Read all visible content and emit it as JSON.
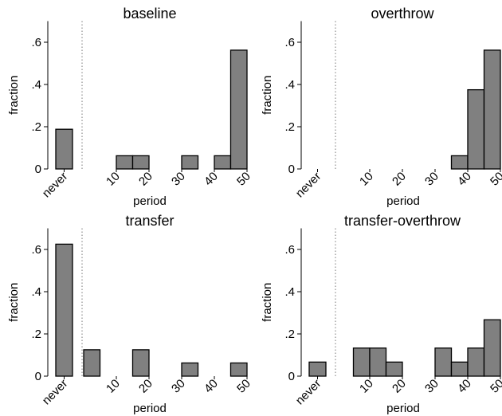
{
  "chart_data": [
    {
      "type": "bar",
      "title": "baseline",
      "xlabel": "period",
      "ylabel": "fraction",
      "ylim": [
        0,
        0.7
      ],
      "yticks": [
        0,
        0.2,
        0.4,
        0.6
      ],
      "ytick_labels": [
        "0",
        ".2",
        ".4",
        ".6"
      ],
      "xticks": [
        "never",
        "10",
        "20",
        "30",
        "40",
        "50"
      ],
      "bars": [
        {
          "x": "never",
          "value": 0.188
        },
        {
          "x": 12.5,
          "value": 0.0625
        },
        {
          "x": 17.5,
          "value": 0.0625
        },
        {
          "x": 32.5,
          "value": 0.0625
        },
        {
          "x": 42.5,
          "value": 0.0625
        },
        {
          "x": 47.5,
          "value": 0.5625
        }
      ]
    },
    {
      "type": "bar",
      "title": "overthrow",
      "xlabel": "period",
      "ylabel": "fraction",
      "ylim": [
        0,
        0.7
      ],
      "yticks": [
        0,
        0.2,
        0.4,
        0.6
      ],
      "ytick_labels": [
        "0",
        ".2",
        ".4",
        ".6"
      ],
      "xticks": [
        "never",
        "10",
        "20",
        "30",
        "40",
        "50"
      ],
      "bars": [
        {
          "x": 37.5,
          "value": 0.0625
        },
        {
          "x": 42.5,
          "value": 0.375
        },
        {
          "x": 47.5,
          "value": 0.5625
        }
      ]
    },
    {
      "type": "bar",
      "title": "transfer",
      "xlabel": "period",
      "ylabel": "fraction",
      "ylim": [
        0,
        0.7
      ],
      "yticks": [
        0,
        0.2,
        0.4,
        0.6
      ],
      "ytick_labels": [
        "0",
        ".2",
        ".4",
        ".6"
      ],
      "xticks": [
        "never",
        "10",
        "20",
        "30",
        "40",
        "50"
      ],
      "bars": [
        {
          "x": "never",
          "value": 0.625
        },
        {
          "x": 2.5,
          "value": 0.125
        },
        {
          "x": 17.5,
          "value": 0.125
        },
        {
          "x": 32.5,
          "value": 0.0625
        },
        {
          "x": 47.5,
          "value": 0.0625
        }
      ]
    },
    {
      "type": "bar",
      "title": "transfer-overthrow",
      "xlabel": "period",
      "ylabel": "fraction",
      "ylim": [
        0,
        0.7
      ],
      "yticks": [
        0,
        0.2,
        0.4,
        0.6
      ],
      "ytick_labels": [
        "0",
        ".2",
        ".4",
        ".6"
      ],
      "xticks": [
        "never",
        "10",
        "20",
        "30",
        "40",
        "50"
      ],
      "bars": [
        {
          "x": "never",
          "value": 0.0667
        },
        {
          "x": 7.5,
          "value": 0.133
        },
        {
          "x": 12.5,
          "value": 0.133
        },
        {
          "x": 17.5,
          "value": 0.0667
        },
        {
          "x": 32.5,
          "value": 0.133
        },
        {
          "x": 37.5,
          "value": 0.0667
        },
        {
          "x": 42.5,
          "value": 0.133
        },
        {
          "x": 47.5,
          "value": 0.267
        }
      ]
    }
  ]
}
